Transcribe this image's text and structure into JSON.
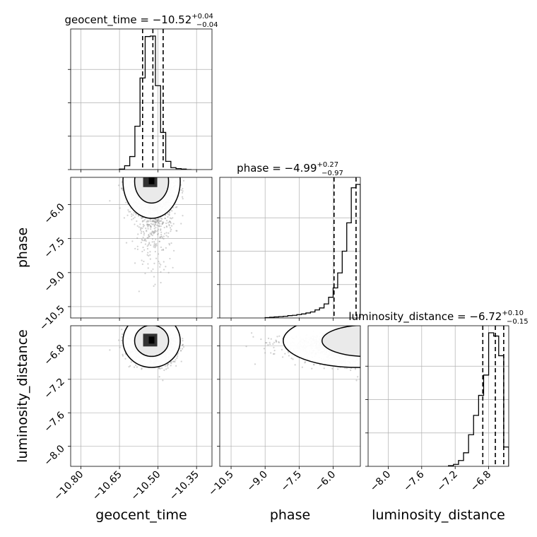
{
  "chart_data": {
    "type": "corner",
    "parameters": [
      "geocent_time",
      "phase",
      "luminosity_distance"
    ],
    "axis_labels": [
      "geocent_time",
      "phase",
      "luminosity_distance"
    ],
    "titles": [
      {
        "name": "geocent_time",
        "median": "−10.52",
        "plus": "+0.04",
        "minus": "−0.04",
        "prefix": "geocent_time = "
      },
      {
        "name": "phase",
        "median": "−4.99",
        "plus": "+0.27",
        "minus": "−0.97",
        "prefix": "phase = "
      },
      {
        "name": "luminosity_distance",
        "median": "−6.72",
        "plus": "+0.10",
        "minus": "−0.15",
        "prefix": "luminosity_distance = "
      }
    ],
    "ranges": {
      "geocent_time": [
        -10.84,
        -10.29
      ],
      "phase": [
        -11.0,
        -4.8
      ],
      "luminosity_distance": [
        -8.24,
        -6.56
      ]
    },
    "ticks": {
      "geocent_time": {
        "values": [
          -10.8,
          -10.65,
          -10.5,
          -10.35
        ],
        "labels": [
          "−10.80",
          "−10.65",
          "−10.50",
          "−10.35"
        ]
      },
      "phase": {
        "values": [
          -10.5,
          -9.0,
          -7.5,
          -6.0
        ],
        "labels": [
          "−10.5",
          "−9.0",
          "−7.5",
          "−6.0"
        ]
      },
      "luminosity_distance": {
        "values": [
          -8.0,
          -7.6,
          -7.2,
          -6.8
        ],
        "labels": [
          "−8.0",
          "−7.6",
          "−7.2",
          "−6.8"
        ]
      }
    },
    "quantiles": {
      "geocent_time": [
        -10.56,
        -10.52,
        -10.48
      ],
      "phase": [
        -5.96,
        -4.99,
        -4.72
      ],
      "luminosity_distance": [
        -6.87,
        -6.72,
        -6.62
      ]
    },
    "histograms": {
      "geocent_time": {
        "edges": [
          -10.65,
          -10.63,
          -10.61,
          -10.59,
          -10.57,
          -10.55,
          -10.53,
          -10.51,
          -10.49,
          -10.47,
          -10.45,
          -10.43,
          -10.41,
          -10.39,
          -10.37
        ],
        "counts": [
          1,
          8,
          27,
          90,
          190,
          276,
          277,
          174,
          77,
          17,
          4,
          2,
          1,
          0
        ]
      },
      "phase": {
        "edges": [
          -9.0,
          -8.8,
          -8.6,
          -8.4,
          -8.2,
          -8.0,
          -7.8,
          -7.6,
          -7.4,
          -7.2,
          -7.0,
          -6.8,
          -6.6,
          -6.4,
          -6.2,
          -6.0,
          -5.8,
          -5.6,
          -5.4,
          -5.2,
          -5.0,
          -4.8
        ],
        "counts": [
          1,
          2,
          3,
          4,
          5,
          7,
          8,
          10,
          12,
          15,
          18,
          24,
          30,
          42,
          62,
          90,
          135,
          200,
          285,
          390,
          400
        ]
      },
      "luminosity_distance": {
        "edges": [
          -7.28,
          -7.22,
          -7.16,
          -7.1,
          -7.04,
          -6.98,
          -6.92,
          -6.86,
          -6.8,
          -6.74,
          -6.68,
          -6.62,
          -6.56
        ],
        "counts": [
          2,
          6,
          18,
          42,
          98,
          158,
          220,
          283,
          414,
          404,
          343,
          60
        ]
      }
    },
    "scatter_summary": {
      "geocent_time_vs_phase": {
        "center": [
          -10.52,
          -4.95
        ],
        "spread": [
          0.04,
          0.9
        ],
        "skew_tail": "low phase"
      },
      "geocent_time_vs_luminosity_distance": {
        "center": [
          -10.52,
          -6.74
        ],
        "spread": [
          0.04,
          0.12
        ]
      },
      "phase_vs_luminosity_distance": {
        "center": [
          -4.95,
          -6.72
        ],
        "spread": [
          0.9,
          0.12
        ]
      }
    },
    "colors": {
      "lines": "#000000",
      "points": "#9a9a9a",
      "grid": "#b0b0b0"
    },
    "grid": true
  }
}
